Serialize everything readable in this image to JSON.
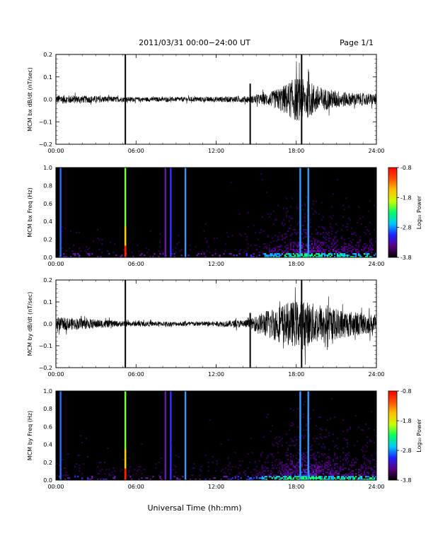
{
  "header": {
    "title": "2011/03/31  00:00−24:00 UT",
    "page": "Page 1/1"
  },
  "xlabel": "Universal Time (hh:mm)",
  "x_ticks": [
    "00:00",
    "06:00",
    "12:00",
    "18:00",
    "24:00"
  ],
  "colorbar": {
    "label": "Log₁₀ Power",
    "ticks": [
      "-0.8",
      "-1.8",
      "-2.8",
      "-3.8"
    ],
    "range": [
      -3.8,
      -0.8
    ],
    "colors": [
      "#000000",
      "#5a0080",
      "#2020ff",
      "#00c8ff",
      "#00ff60",
      "#c8ff00",
      "#ffc000",
      "#ff5000",
      "#ff0000"
    ]
  },
  "chart_data": [
    {
      "type": "line",
      "ylabel": "MCM bx dB/dt (nT/sec)",
      "xlim": [
        0,
        24
      ],
      "ylim": [
        -0.2,
        0.2
      ],
      "y_ticks": [
        "0.2",
        "0.1",
        "0.0",
        "−0.1",
        "−0.2"
      ],
      "envelope": [
        {
          "t": 0,
          "amp": 0.02
        },
        {
          "t": 3,
          "amp": 0.015
        },
        {
          "t": 6,
          "amp": 0.01
        },
        {
          "t": 9,
          "amp": 0.01
        },
        {
          "t": 12,
          "amp": 0.012
        },
        {
          "t": 14.5,
          "amp": 0.015
        },
        {
          "t": 16,
          "amp": 0.03
        },
        {
          "t": 17,
          "amp": 0.06
        },
        {
          "t": 18,
          "amp": 0.1
        },
        {
          "t": 19,
          "amp": 0.08
        },
        {
          "t": 20,
          "amp": 0.05
        },
        {
          "t": 22,
          "amp": 0.03
        },
        {
          "t": 24,
          "amp": 0.025
        }
      ],
      "spikes": [
        {
          "t": 5.2,
          "min": -0.2,
          "max": 0.2
        },
        {
          "t": 14.55,
          "min": -0.2,
          "max": 0.07
        },
        {
          "t": 18.4,
          "min": -0.2,
          "max": 0.2
        }
      ]
    },
    {
      "type": "heatmap",
      "ylabel": "MCM bx Freq (Hz)",
      "xlim": [
        0,
        24
      ],
      "ylim": [
        0,
        1.0
      ],
      "y_ticks": [
        "1.0",
        "0.8",
        "0.6",
        "0.4",
        "0.2",
        "0.0"
      ],
      "activity": [
        {
          "t": 0,
          "level": 0.15
        },
        {
          "t": 6,
          "level": 0.1
        },
        {
          "t": 12,
          "level": 0.12
        },
        {
          "t": 15,
          "level": 0.25
        },
        {
          "t": 17,
          "level": 0.55
        },
        {
          "t": 18.5,
          "level": 0.75
        },
        {
          "t": 20,
          "level": 0.6
        },
        {
          "t": 24,
          "level": 0.45
        }
      ],
      "stripes": [
        {
          "t": 0.35,
          "color": "#2a6cff"
        },
        {
          "t": 5.2,
          "color": "#7dff3a"
        },
        {
          "t": 8.2,
          "color": "#6a1aa8"
        },
        {
          "t": 8.6,
          "color": "#3a2cff"
        },
        {
          "t": 9.7,
          "color": "#2e9cff"
        },
        {
          "t": 18.3,
          "color": "#2e9cff"
        },
        {
          "t": 18.9,
          "color": "#2e9cff"
        }
      ]
    },
    {
      "type": "line",
      "ylabel": "MCM by dB/dt (nT/sec)",
      "xlim": [
        0,
        24
      ],
      "ylim": [
        -0.2,
        0.2
      ],
      "y_ticks": [
        "0.2",
        "0.1",
        "0.0",
        "−0.1",
        "−0.2"
      ],
      "envelope": [
        {
          "t": 0,
          "amp": 0.03
        },
        {
          "t": 2,
          "amp": 0.025
        },
        {
          "t": 5,
          "amp": 0.012
        },
        {
          "t": 9,
          "amp": 0.01
        },
        {
          "t": 12,
          "amp": 0.012
        },
        {
          "t": 14.5,
          "amp": 0.02
        },
        {
          "t": 16,
          "amp": 0.07
        },
        {
          "t": 17.5,
          "amp": 0.1
        },
        {
          "t": 18.5,
          "amp": 0.11
        },
        {
          "t": 20,
          "amp": 0.08
        },
        {
          "t": 22,
          "amp": 0.06
        },
        {
          "t": 24,
          "amp": 0.04
        }
      ],
      "spikes": [
        {
          "t": 5.2,
          "min": -0.2,
          "max": 0.2
        },
        {
          "t": 14.55,
          "min": -0.2,
          "max": 0.05
        },
        {
          "t": 18.4,
          "min": -0.2,
          "max": 0.2
        }
      ]
    },
    {
      "type": "heatmap",
      "ylabel": "MCM by Freq (Hz)",
      "xlim": [
        0,
        24
      ],
      "ylim": [
        0,
        1.0
      ],
      "y_ticks": [
        "1.0",
        "0.8",
        "0.6",
        "0.4",
        "0.2",
        "0.0"
      ],
      "activity": [
        {
          "t": 0,
          "level": 0.2
        },
        {
          "t": 6,
          "level": 0.12
        },
        {
          "t": 12,
          "level": 0.14
        },
        {
          "t": 15,
          "level": 0.3
        },
        {
          "t": 17,
          "level": 0.6
        },
        {
          "t": 18.5,
          "level": 0.8
        },
        {
          "t": 20,
          "level": 0.65
        },
        {
          "t": 24,
          "level": 0.5
        }
      ],
      "stripes": [
        {
          "t": 0.35,
          "color": "#2a6cff"
        },
        {
          "t": 5.2,
          "color": "#7dff3a"
        },
        {
          "t": 8.2,
          "color": "#6a1aa8"
        },
        {
          "t": 8.6,
          "color": "#3a2cff"
        },
        {
          "t": 9.7,
          "color": "#2e9cff"
        },
        {
          "t": 18.3,
          "color": "#2e9cff"
        },
        {
          "t": 18.9,
          "color": "#2e9cff"
        }
      ]
    }
  ]
}
